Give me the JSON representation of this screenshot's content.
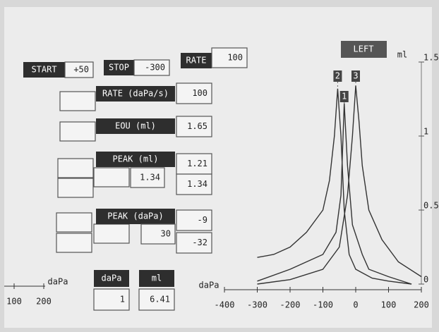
{
  "controls": {
    "start": {
      "label": "START",
      "value": "+50"
    },
    "stop": {
      "label": "STOP",
      "value": "-300"
    },
    "rate": {
      "label": "RATE",
      "value": "100"
    }
  },
  "rows": [
    {
      "label": "RATE (daPa/s)",
      "values": [
        "100"
      ]
    },
    {
      "label": "EOU (ml)",
      "values": [
        "1.65"
      ]
    },
    {
      "label": "PEAK (ml)",
      "middle": "1.34",
      "values": [
        "1.21",
        "1.34"
      ]
    },
    {
      "label": "PEAK (daPa)",
      "middle": "30",
      "values": [
        "-9",
        "-32"
      ]
    }
  ],
  "bottom": {
    "dapa_label": "daPa",
    "dapa_value": "1",
    "ml_label": "ml",
    "ml_value": "6.41"
  },
  "left_axis": {
    "label": "daPa",
    "ticks": [
      "100",
      "200"
    ]
  },
  "side_button": "LEFT",
  "chart_data": {
    "type": "line",
    "x_label": "daPa",
    "y_label": "ml",
    "xlim": [
      -400,
      200
    ],
    "xticks": [
      -400,
      -300,
      -200,
      -100,
      0,
      100,
      200
    ],
    "ylim": [
      0,
      1.5
    ],
    "yticks": [
      0,
      0.5,
      1,
      1.5
    ],
    "series": [
      {
        "name": "2",
        "color": "#333333",
        "x": [
          -300,
          -250,
          -200,
          -150,
          -100,
          -80,
          -65,
          -55,
          -45,
          -35,
          -20,
          0,
          50,
          100,
          170
        ],
        "values": [
          0.18,
          0.2,
          0.25,
          0.35,
          0.5,
          0.7,
          1.0,
          1.32,
          1.0,
          0.5,
          0.2,
          0.1,
          0.04,
          0.02,
          0.0
        ]
      },
      {
        "name": "1",
        "color": "#333333",
        "x": [
          -300,
          -200,
          -100,
          -60,
          -45,
          -35,
          -25,
          -10,
          20,
          40,
          100,
          170
        ],
        "values": [
          0.02,
          0.1,
          0.2,
          0.35,
          0.6,
          1.22,
          0.8,
          0.4,
          0.2,
          0.1,
          0.05,
          0.0
        ]
      },
      {
        "name": "3",
        "color": "#333333",
        "x": [
          -300,
          -200,
          -100,
          -50,
          -25,
          -10,
          0,
          10,
          20,
          40,
          80,
          130,
          200
        ],
        "values": [
          0.0,
          0.03,
          0.1,
          0.25,
          0.6,
          1.0,
          1.34,
          1.1,
          0.8,
          0.5,
          0.3,
          0.15,
          0.05
        ]
      }
    ]
  }
}
